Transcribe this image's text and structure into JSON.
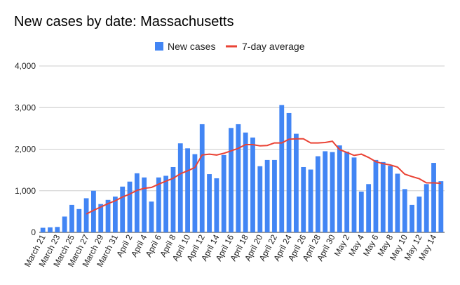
{
  "chart_data": {
    "type": "bar",
    "title": "New cases by date: Massachusetts",
    "xlabel": "",
    "ylabel": "",
    "ylim": [
      0,
      4000
    ],
    "yticks": [
      "0",
      "1,000",
      "2,000",
      "3,000",
      "4,000"
    ],
    "grid": true,
    "legend_position": "top-center",
    "categories": [
      "March 21",
      "March 22",
      "March 23",
      "March 24",
      "March 25",
      "March 26",
      "March 27",
      "March 28",
      "March 29",
      "March 30",
      "March 31",
      "April 1",
      "April 2",
      "April 3",
      "April 4",
      "April 5",
      "April 6",
      "April 7",
      "April 8",
      "April 9",
      "April 10",
      "April 11",
      "April 12",
      "April 13",
      "April 14",
      "April 15",
      "April 16",
      "April 17",
      "April 18",
      "April 19",
      "April 20",
      "April 21",
      "April 22",
      "April 23",
      "April 24",
      "April 25",
      "April 26",
      "April 27",
      "April 28",
      "April 29",
      "April 30",
      "May 1",
      "May 2",
      "May 3",
      "May 4",
      "May 5",
      "May 6",
      "May 7",
      "May 8",
      "May 9",
      "May 10",
      "May 11",
      "May 12",
      "May 13",
      "May 14",
      "May 15"
    ],
    "tick_labels": [
      "March 21",
      "",
      "March 23",
      "",
      "March 25",
      "",
      "March 27",
      "",
      "March 29",
      "",
      "March 31",
      "",
      "April 2",
      "",
      "April 4",
      "",
      "April 6",
      "",
      "April 8",
      "",
      "April 10",
      "",
      "April 12",
      "",
      "April 14",
      "",
      "April 16",
      "",
      "April 18",
      "",
      "April 20",
      "",
      "April 22",
      "",
      "April 24",
      "",
      "April 26",
      "",
      "April 28",
      "",
      "April 30",
      "",
      "May 2",
      "",
      "May 4",
      "",
      "May 6",
      "",
      "May 8",
      "",
      "May 10",
      "",
      "May 12",
      "",
      "May 14",
      ""
    ],
    "series": [
      {
        "name": "New cases",
        "type": "bar",
        "color": "#4285f4",
        "values": [
          110,
          120,
          130,
          380,
          660,
          560,
          820,
          1000,
          680,
          780,
          860,
          1100,
          1220,
          1420,
          1320,
          740,
          1320,
          1360,
          1570,
          2140,
          2020,
          1880,
          2600,
          1400,
          1300,
          1860,
          2510,
          2600,
          2400,
          2280,
          1590,
          1740,
          1740,
          3060,
          2870,
          2370,
          1570,
          1510,
          1830,
          1950,
          1930,
          2090,
          1940,
          1800,
          980,
          1160,
          1740,
          1690,
          1600,
          1410,
          1040,
          660,
          860,
          1160,
          1670,
          1230
        ]
      },
      {
        "name": "7-day average",
        "type": "line",
        "color": "#ea4335",
        "values": [
          null,
          null,
          null,
          null,
          null,
          null,
          440,
          530,
          610,
          690,
          760,
          850,
          920,
          1010,
          1060,
          1080,
          1160,
          1230,
          1300,
          1410,
          1480,
          1560,
          1860,
          1880,
          1860,
          1900,
          1960,
          2020,
          2110,
          2110,
          2080,
          2090,
          2150,
          2150,
          2240,
          2250,
          2250,
          2150,
          2150,
          2160,
          2190,
          1990,
          1920,
          1850,
          1880,
          1800,
          1700,
          1650,
          1620,
          1570,
          1400,
          1340,
          1290,
          1190,
          1190,
          1180
        ]
      }
    ]
  }
}
